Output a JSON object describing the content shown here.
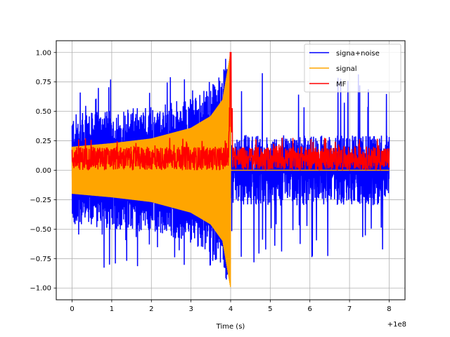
{
  "chart_data": {
    "type": "line",
    "title": "",
    "xlabel": "Time (s)",
    "ylabel": "",
    "x_offset_label": "+1e8",
    "xlim": [
      -0.4,
      8.4
    ],
    "ylim": [
      -1.1,
      1.1
    ],
    "xticks": [
      0,
      1,
      2,
      3,
      4,
      5,
      6,
      7,
      8
    ],
    "xtick_labels": [
      "0",
      "1",
      "2",
      "3",
      "4",
      "5",
      "6",
      "7",
      "8"
    ],
    "yticks": [
      -1.0,
      -0.75,
      -0.5,
      -0.25,
      0.0,
      0.25,
      0.5,
      0.75,
      1.0
    ],
    "ytick_labels": [
      "−1.00",
      "−0.75",
      "−0.50",
      "−0.25",
      "0.00",
      "0.25",
      "0.50",
      "0.75",
      "1.00"
    ],
    "grid": true,
    "legend_position": "top-right",
    "series": [
      {
        "name": "signa+noise",
        "color": "#0000ff",
        "description": "noisy chirp, amplitude about ±0.3 with spikes to ±0.8, chirp visible up to t=4",
        "t_start": 0,
        "t_end": 8,
        "noise_amplitude": 0.3,
        "peak_min": -0.95,
        "peak_max": 0.95
      },
      {
        "name": "signal",
        "color": "#ffa500",
        "description": "chirp with growing amplitude and frequency, ending at t=4, zero afterwards",
        "t_start": 0,
        "t_end": 4,
        "amp_start": 0.2,
        "amp_end": 1.0,
        "envelope": [
          [
            0,
            0.2
          ],
          [
            1,
            0.23
          ],
          [
            2,
            0.27
          ],
          [
            3,
            0.36
          ],
          [
            3.5,
            0.46
          ],
          [
            3.8,
            0.6
          ],
          [
            4.0,
            1.0
          ]
        ]
      },
      {
        "name": "MF",
        "color": "#ff0000",
        "description": "matched filter output, mostly 0 to 0.2 with a peak of 1.0 at t=4",
        "t_start": 0,
        "t_end": 8,
        "baseline_low": 0.0,
        "baseline_high": 0.2,
        "peak_x": 4.0,
        "peak_y": 1.0
      }
    ]
  }
}
